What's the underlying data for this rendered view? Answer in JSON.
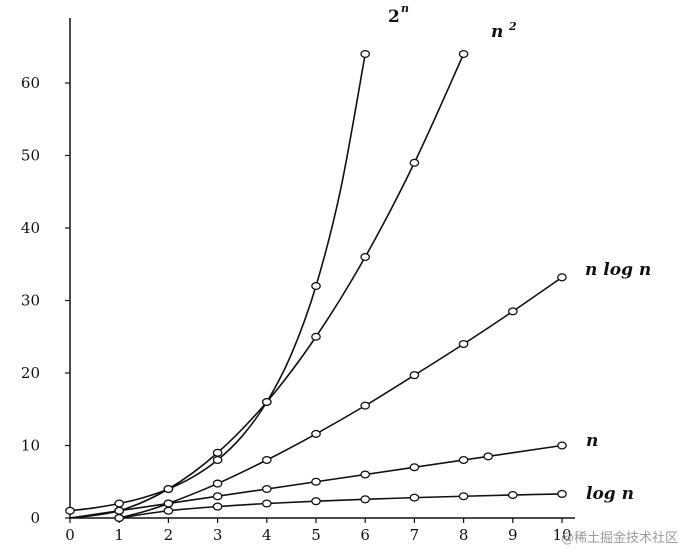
{
  "chart_data": {
    "type": "line",
    "title": "",
    "xlabel": "",
    "ylabel": "",
    "xlim": [
      0,
      10
    ],
    "ylim": [
      0,
      64
    ],
    "x_ticks": [
      "0",
      "1",
      "2",
      "3",
      "4",
      "5",
      "6",
      "7",
      "8",
      "9",
      "10"
    ],
    "y_ticks": [
      "0",
      "10",
      "20",
      "30",
      "40",
      "50",
      "60"
    ],
    "grid": false,
    "series": [
      {
        "name": "2",
        "name_exponent": "n",
        "curve": [
          [
            0,
            1
          ],
          [
            0.5,
            1.41
          ],
          [
            1,
            2
          ],
          [
            1.5,
            2.83
          ],
          [
            2,
            4
          ],
          [
            2.5,
            5.66
          ],
          [
            3,
            8
          ],
          [
            3.5,
            11.3
          ],
          [
            4,
            16
          ],
          [
            4.5,
            22.6
          ],
          [
            5,
            32
          ],
          [
            5.5,
            45.3
          ],
          [
            6,
            64
          ]
        ],
        "points": [
          [
            0,
            1
          ],
          [
            1,
            2
          ],
          [
            2,
            4
          ],
          [
            3,
            8
          ],
          [
            4,
            16
          ],
          [
            5,
            32
          ],
          [
            6,
            64
          ]
        ]
      },
      {
        "name": "n",
        "name_exponent": "2",
        "curve": [
          [
            0,
            0
          ],
          [
            1,
            1
          ],
          [
            2,
            4
          ],
          [
            3,
            9
          ],
          [
            4,
            16
          ],
          [
            5,
            25
          ],
          [
            6,
            36
          ],
          [
            7,
            49
          ],
          [
            8,
            64
          ]
        ],
        "points": [
          [
            1,
            1
          ],
          [
            2,
            4
          ],
          [
            3,
            9
          ],
          [
            4,
            16
          ],
          [
            5,
            25
          ],
          [
            6,
            36
          ],
          [
            7,
            49
          ],
          [
            8,
            64
          ]
        ]
      },
      {
        "name": "n log n",
        "curve": [
          [
            1,
            0
          ],
          [
            1.5,
            0.88
          ],
          [
            2,
            2
          ],
          [
            3,
            4.75
          ],
          [
            4,
            8
          ],
          [
            5,
            11.6
          ],
          [
            6,
            15.5
          ],
          [
            7,
            19.7
          ],
          [
            8,
            24
          ],
          [
            9,
            28.5
          ],
          [
            10,
            33.2
          ]
        ],
        "points": [
          [
            1,
            0
          ],
          [
            2,
            2
          ],
          [
            3,
            4.75
          ],
          [
            4,
            8
          ],
          [
            5,
            11.6
          ],
          [
            6,
            15.5
          ],
          [
            7,
            19.7
          ],
          [
            8,
            24
          ],
          [
            9,
            28.5
          ],
          [
            10,
            33.2
          ]
        ]
      },
      {
        "name": "n",
        "curve": [
          [
            0,
            0
          ],
          [
            10,
            10
          ]
        ],
        "points": [
          [
            1,
            1
          ],
          [
            2,
            2
          ],
          [
            3,
            3
          ],
          [
            4,
            4
          ],
          [
            5,
            5
          ],
          [
            6,
            6
          ],
          [
            7,
            7
          ],
          [
            8,
            8
          ],
          [
            8.5,
            8.5
          ],
          [
            10,
            10
          ]
        ]
      },
      {
        "name": "log n",
        "curve": [
          [
            1,
            0
          ],
          [
            2,
            1
          ],
          [
            3,
            1.58
          ],
          [
            4,
            2
          ],
          [
            5,
            2.32
          ],
          [
            6,
            2.58
          ],
          [
            7,
            2.81
          ],
          [
            8,
            3
          ],
          [
            9,
            3.17
          ],
          [
            10,
            3.32
          ]
        ],
        "points": [
          [
            1,
            0
          ],
          [
            2,
            1
          ],
          [
            3,
            1.58
          ],
          [
            4,
            2
          ],
          [
            5,
            2.32
          ],
          [
            6,
            2.58
          ],
          [
            7,
            2.81
          ],
          [
            8,
            3
          ],
          [
            9,
            3.17
          ],
          [
            10,
            3.32
          ]
        ]
      }
    ]
  },
  "watermark": "@稀土掘金技术社区"
}
